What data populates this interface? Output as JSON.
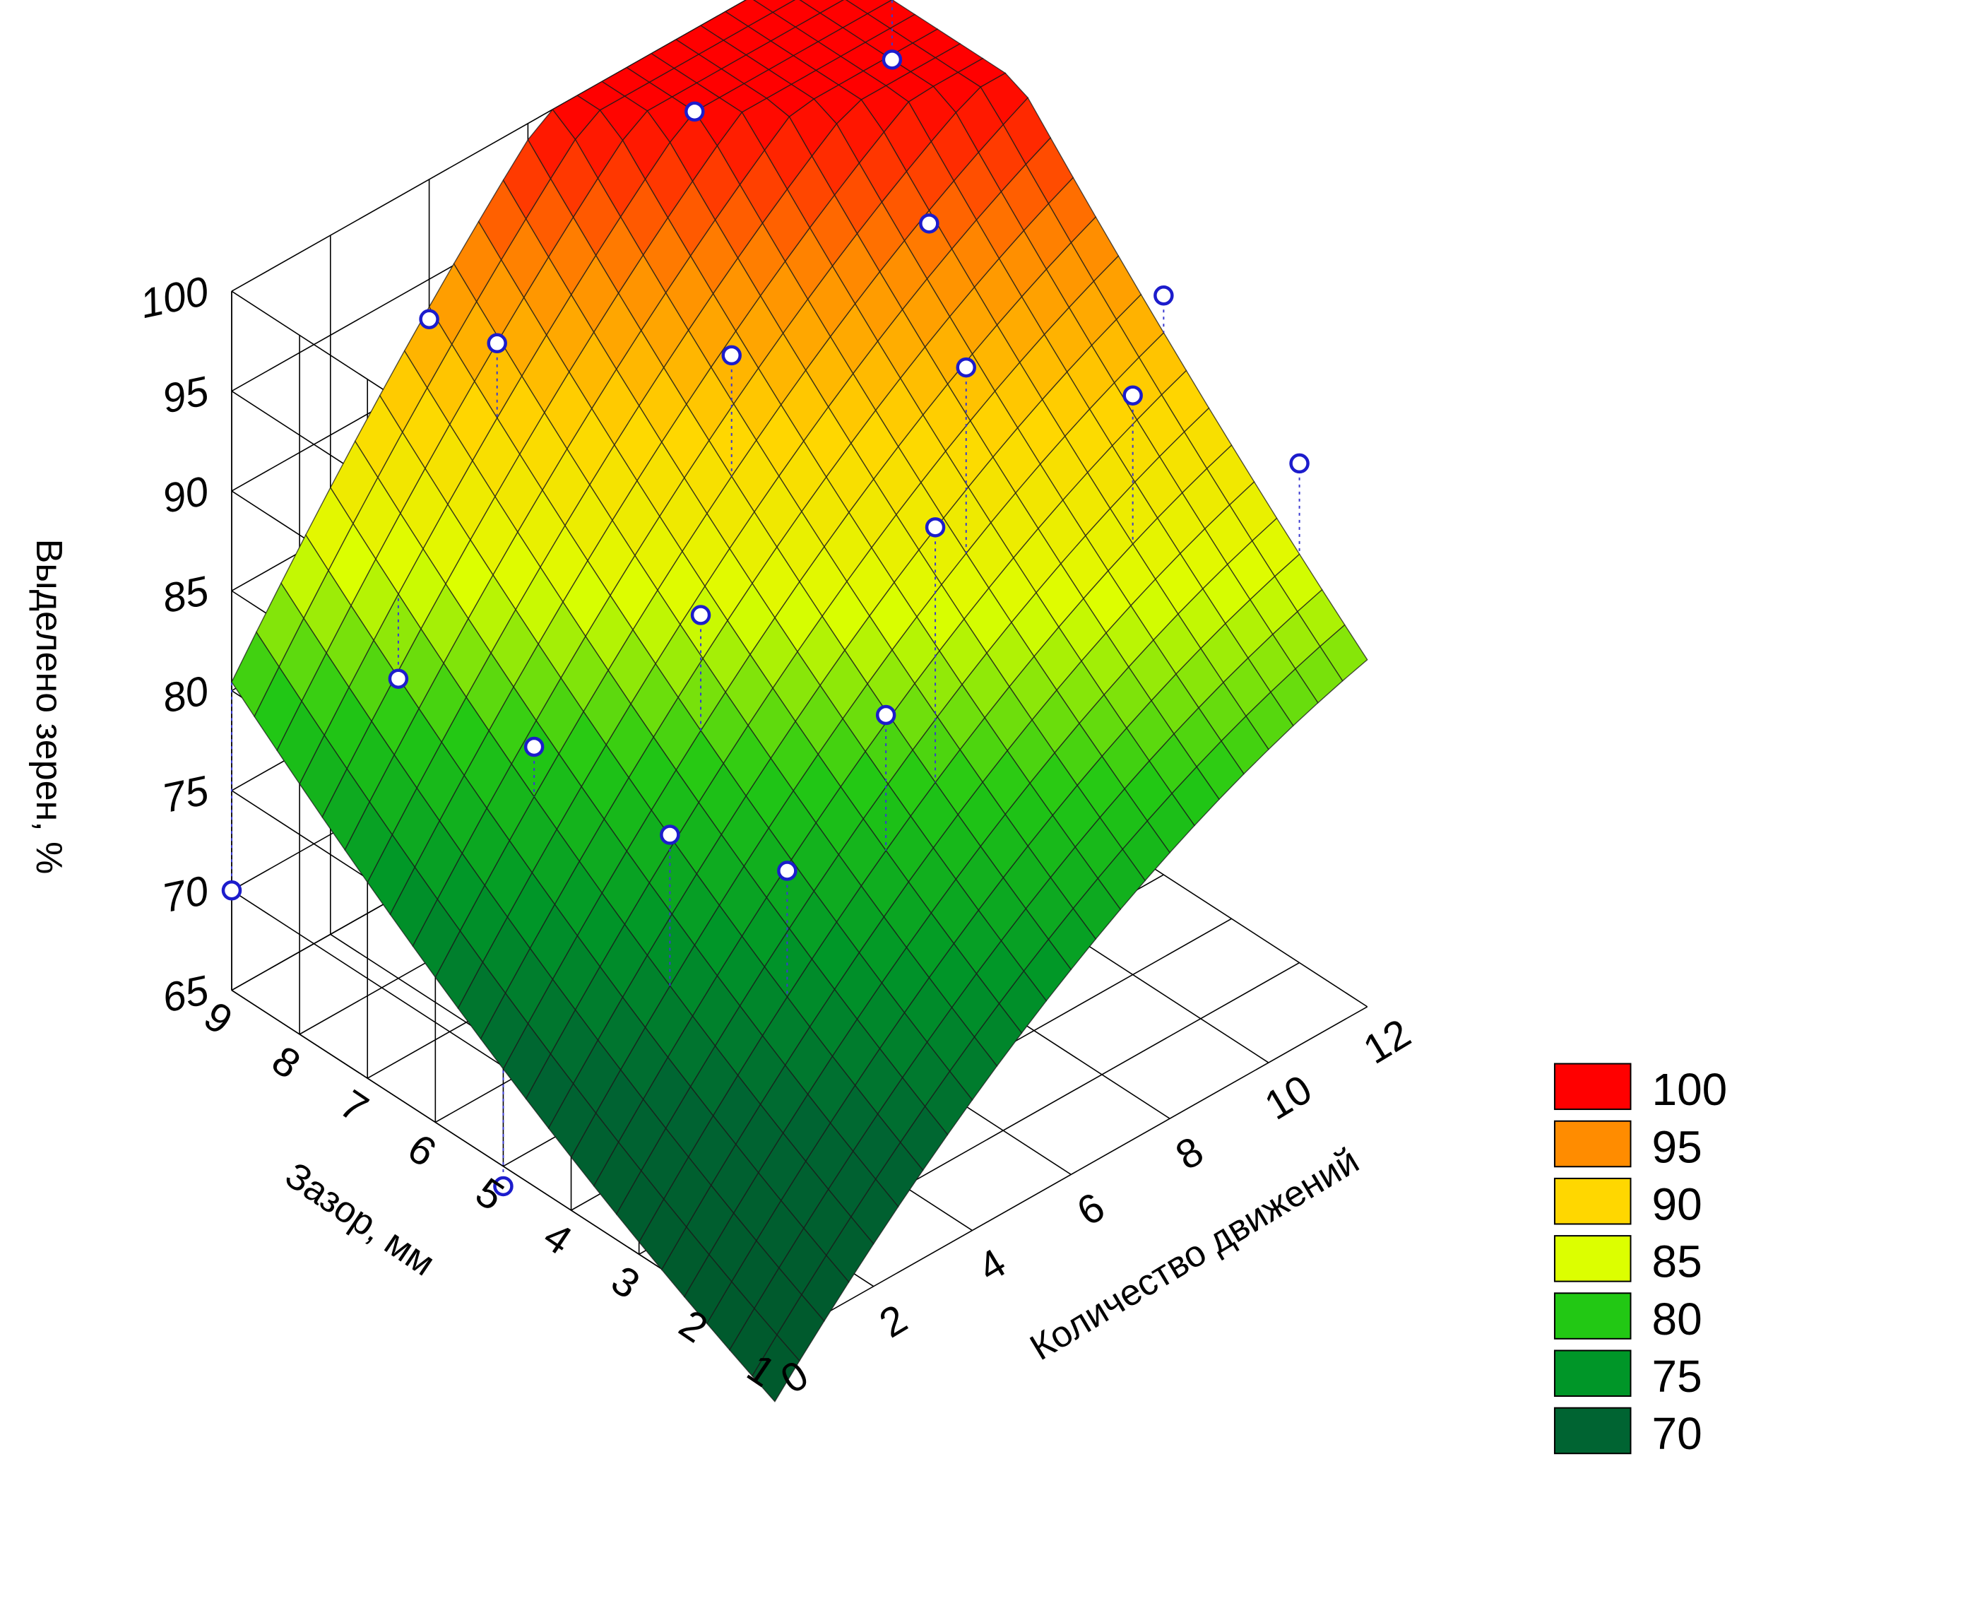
{
  "chart_data": {
    "type": "surface3d",
    "zlabel": "Выделено зерен, %",
    "xlabel": "Количество движений",
    "ylabel": "Зазор, мм",
    "xticks": [
      "0",
      "2",
      "4",
      "6",
      "8",
      "10",
      "12"
    ],
    "yticks": [
      "1",
      "2",
      "3",
      "4",
      "5",
      "6",
      "7",
      "8",
      "9"
    ],
    "zticks": [
      "65",
      "70",
      "75",
      "80",
      "85",
      "90",
      "95",
      "100"
    ],
    "xlim": [
      0,
      12
    ],
    "ylim": [
      1,
      9
    ],
    "zlim": [
      65,
      100
    ],
    "legend": {
      "position": "right",
      "entries": [
        {
          "label": "100",
          "color": "#ff0000"
        },
        {
          "label": "95",
          "color": "#ff8c00"
        },
        {
          "label": "90",
          "color": "#ffd700"
        },
        {
          "label": "85",
          "color": "#dcff00"
        },
        {
          "label": "80",
          "color": "#22c814"
        },
        {
          "label": "75",
          "color": "#009628"
        },
        {
          "label": "70",
          "color": "#006432"
        }
      ]
    },
    "observed_points": [
      {
        "x": 0,
        "y": 9,
        "z": 70
      },
      {
        "x": 0,
        "y": 5,
        "z": 64
      },
      {
        "x": 2,
        "y": 8,
        "z": 80
      },
      {
        "x": 2,
        "y": 6,
        "z": 81
      },
      {
        "x": 2,
        "y": 4,
        "z": 81
      },
      {
        "x": 3,
        "y": 3,
        "z": 80
      },
      {
        "x": 4,
        "y": 9,
        "z": 93
      },
      {
        "x": 4,
        "y": 8,
        "z": 94
      },
      {
        "x": 4,
        "y": 5,
        "z": 87
      },
      {
        "x": 5,
        "y": 3,
        "z": 85
      },
      {
        "x": 6,
        "y": 6,
        "z": 95
      },
      {
        "x": 6,
        "y": 3,
        "z": 93
      },
      {
        "x": 8,
        "y": 8,
        "z": 100
      },
      {
        "x": 8,
        "y": 4,
        "z": 96
      },
      {
        "x": 10,
        "y": 6,
        "z": 96
      },
      {
        "x": 10,
        "y": 3,
        "z": 94
      },
      {
        "x": 12,
        "y": 8,
        "z": 97
      },
      {
        "x": 12,
        "y": 4,
        "z": 94
      },
      {
        "x": 12,
        "y": 2,
        "z": 90
      }
    ]
  }
}
